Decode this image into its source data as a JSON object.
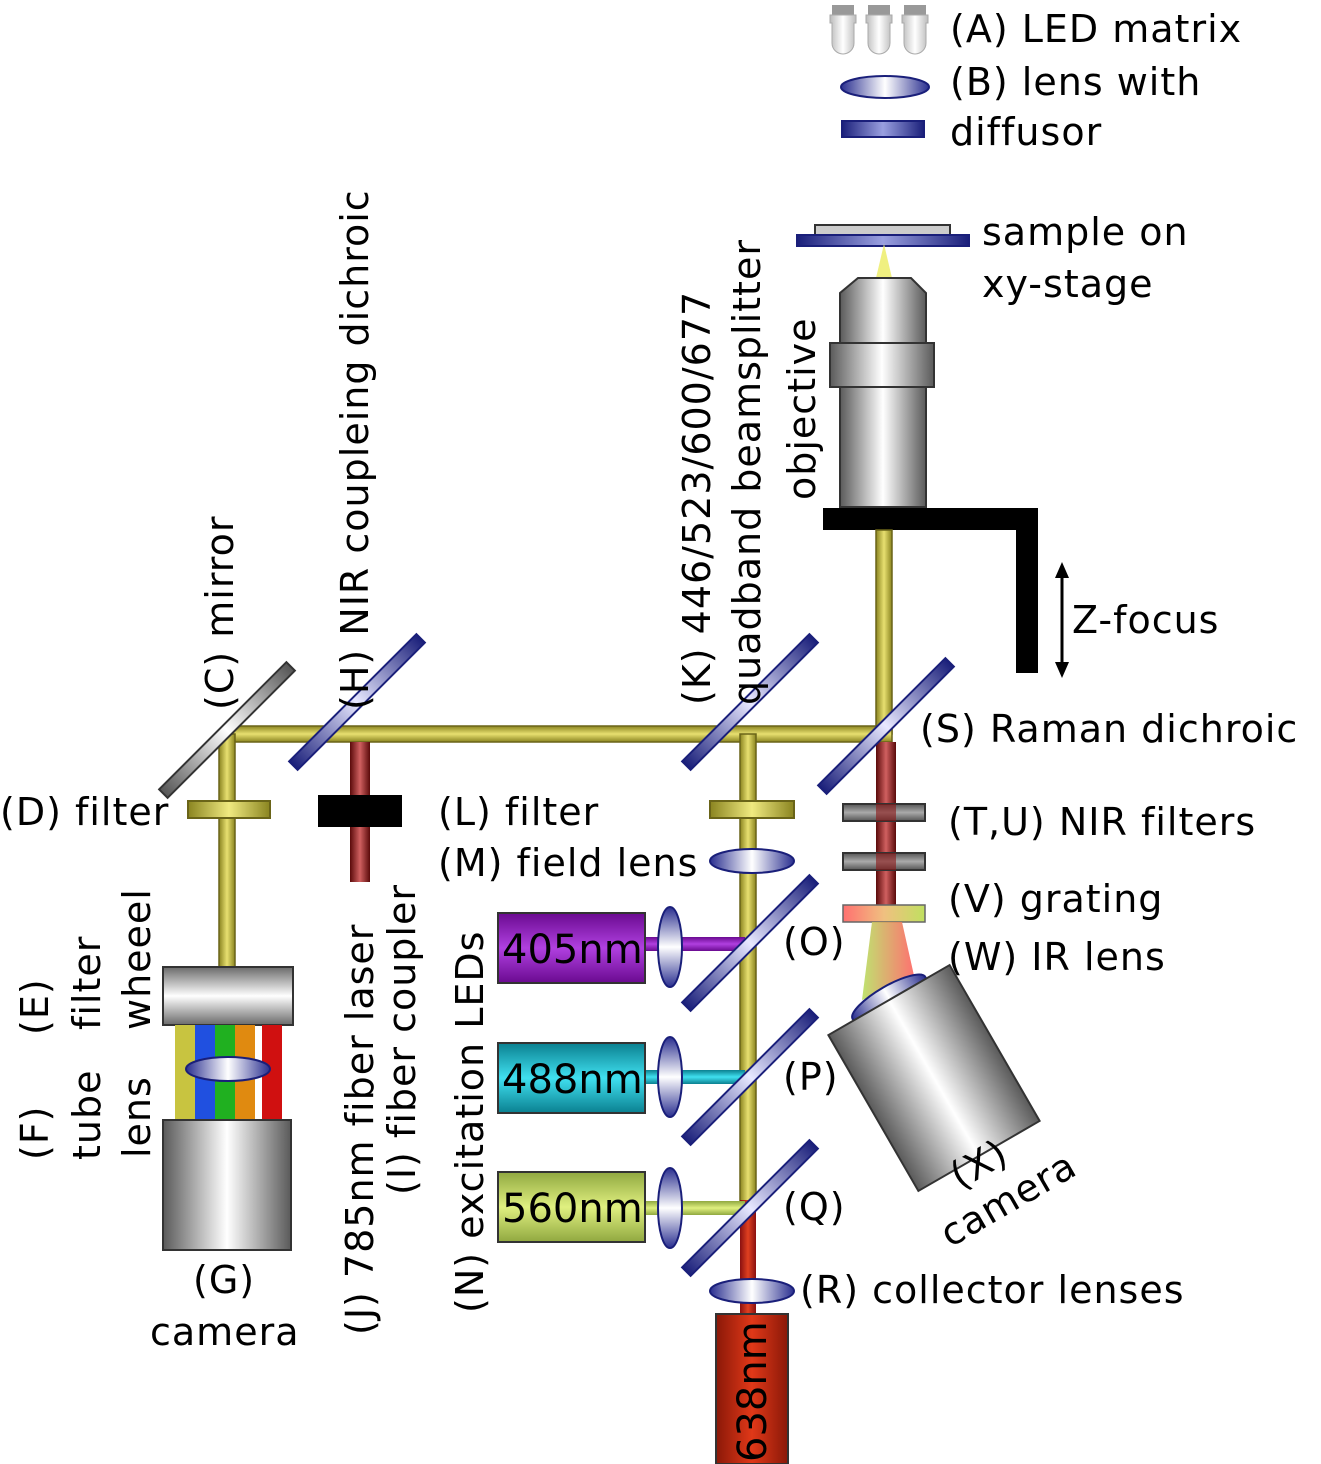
{
  "legend": {
    "led_matrix": "(A) LED matrix",
    "lens_with": "(B) lens with",
    "diffusor": "diffusor"
  },
  "labels": {
    "sample_line1": "sample  on",
    "sample_line2": "xy-stage",
    "objective": "objective",
    "z_focus": "Z-focus",
    "mirror": "(C) mirror",
    "nir_dichroic": "(H) NIR coupleing dichroic",
    "quadband_line1": "(K) 446/523/600/677",
    "quadband_line2": "quadband beamsplitter",
    "raman_dichroic": "(S) Raman dichroic",
    "filter_d": "(D) filter",
    "filter_l": "(L) filter",
    "nir_filters": "(T,U) NIR filters",
    "field_lens": "(M) field lens",
    "grating": "(V) grating",
    "ir_lens": "(W) IR lens",
    "dichroic_o": "(O)",
    "dichroic_p": "(P)",
    "dichroic_q": "(Q)",
    "collector": "(R) collector lenses",
    "camera_x_line1": "(X)",
    "camera_x_line2": "camera",
    "camera_g_line1": "(G)",
    "camera_g_line2": "camera",
    "filter_wheel_line1": "(E)",
    "filter_wheel_line2": "filter",
    "filter_wheel_line3": "wheeel",
    "tube_lens_line1": "(F)",
    "tube_lens_line2": "tube",
    "tube_lens_line3": "lens",
    "fiber_laser": "(J) 785nm fiber laser",
    "fiber_coupler": "(I) fiber coupler",
    "excitation_leds": "(N) excitation LEDs"
  },
  "leds": {
    "led_405": "405nm",
    "led_488": "488nm",
    "led_560": "560nm",
    "led_638": "638nm"
  },
  "colors": {
    "beam": "#c9c24a",
    "nir": "#8a1414",
    "violet": "#8c1ab8",
    "cyan": "#12b0c0",
    "lime": "#b8d060",
    "red": "#c01e0e",
    "optic_blue": "#1a1f7a"
  }
}
